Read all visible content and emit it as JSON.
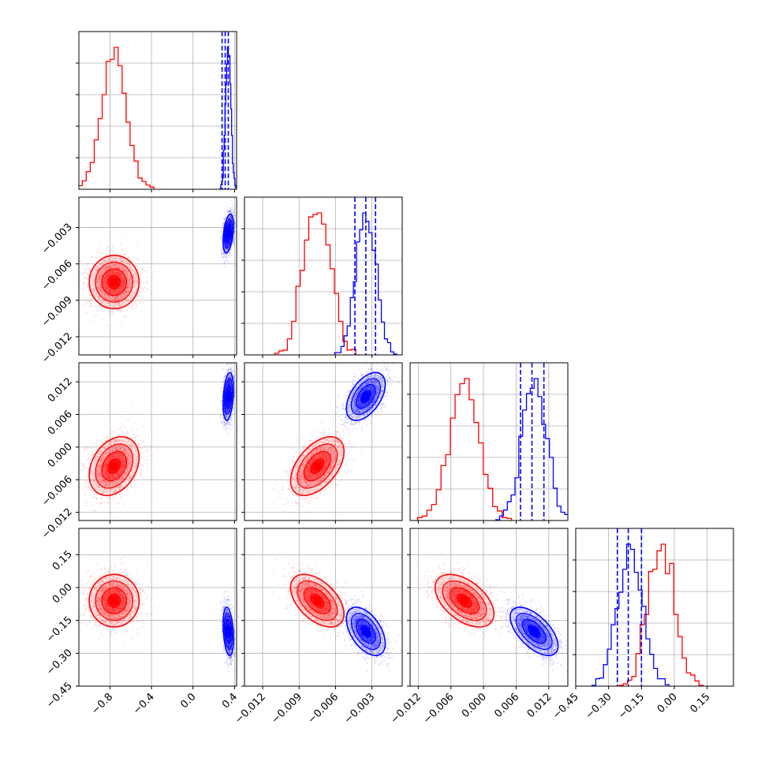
{
  "chart_data": {
    "type": "scatter",
    "subtype": "corner-plot",
    "grid": true,
    "title": "",
    "parameters": [
      {
        "range": [
          -1.1,
          0.42
        ],
        "ticks": [
          -0.8,
          -0.4,
          0.0,
          0.4
        ],
        "tick_labels": [
          "−0.8",
          "−0.4",
          "0.0",
          "0.4"
        ]
      },
      {
        "range": [
          -0.0135,
          -0.0005
        ],
        "ticks": [
          -0.012,
          -0.009,
          -0.006,
          -0.003
        ],
        "tick_labels": [
          "−0.012",
          "−0.009",
          "−0.006",
          "−0.003"
        ]
      },
      {
        "range": [
          -0.0135,
          0.0155
        ],
        "ticks": [
          -0.012,
          -0.006,
          0.0,
          0.006,
          0.012
        ],
        "tick_labels": [
          "−0.012",
          "−0.006",
          "0.000",
          "0.006",
          "0.012"
        ]
      },
      {
        "range": [
          -0.45,
          0.27
        ],
        "ticks": [
          -0.45,
          -0.3,
          -0.15,
          0.0,
          0.15
        ],
        "tick_labels": [
          "−0.45",
          "−0.30",
          "−0.15",
          "0.00",
          "0.15"
        ]
      }
    ],
    "series": [
      {
        "color": "#ff0000",
        "means": [
          -0.76,
          -0.0075,
          -0.0035,
          -0.06
        ],
        "sds": [
          0.12,
          0.0011,
          0.0027,
          0.06
        ],
        "correlations": [
          [
            1,
            0,
            0.3,
            0
          ],
          [
            0,
            1,
            0.5,
            -0.5
          ],
          [
            0.3,
            0.5,
            1,
            -0.5
          ],
          [
            0,
            -0.5,
            -0.5,
            1
          ]
        ]
      },
      {
        "color": "#0000ff",
        "means": [
          0.34,
          -0.0035,
          0.0093,
          -0.2
        ],
        "sds": [
          0.025,
          0.0008,
          0.0022,
          0.055
        ],
        "correlations": [
          [
            1,
            0.4,
            0.3,
            -0.3
          ],
          [
            0.4,
            1,
            0.5,
            -0.5
          ],
          [
            0.3,
            0.5,
            1,
            -0.6
          ],
          [
            -0.3,
            -0.5,
            -0.6,
            1
          ]
        ],
        "quantile_lines": [
          [
            0.28,
            0.31,
            0.34
          ],
          [
            -0.0044,
            -0.0035,
            -0.0027
          ],
          [
            0.0068,
            0.0089,
            0.0111
          ],
          [
            -0.26,
            -0.21,
            -0.15
          ]
        ]
      }
    ],
    "hist_bins": 20,
    "contour_levels": [
      0.5,
      1.0,
      1.5,
      2.0
    ]
  }
}
